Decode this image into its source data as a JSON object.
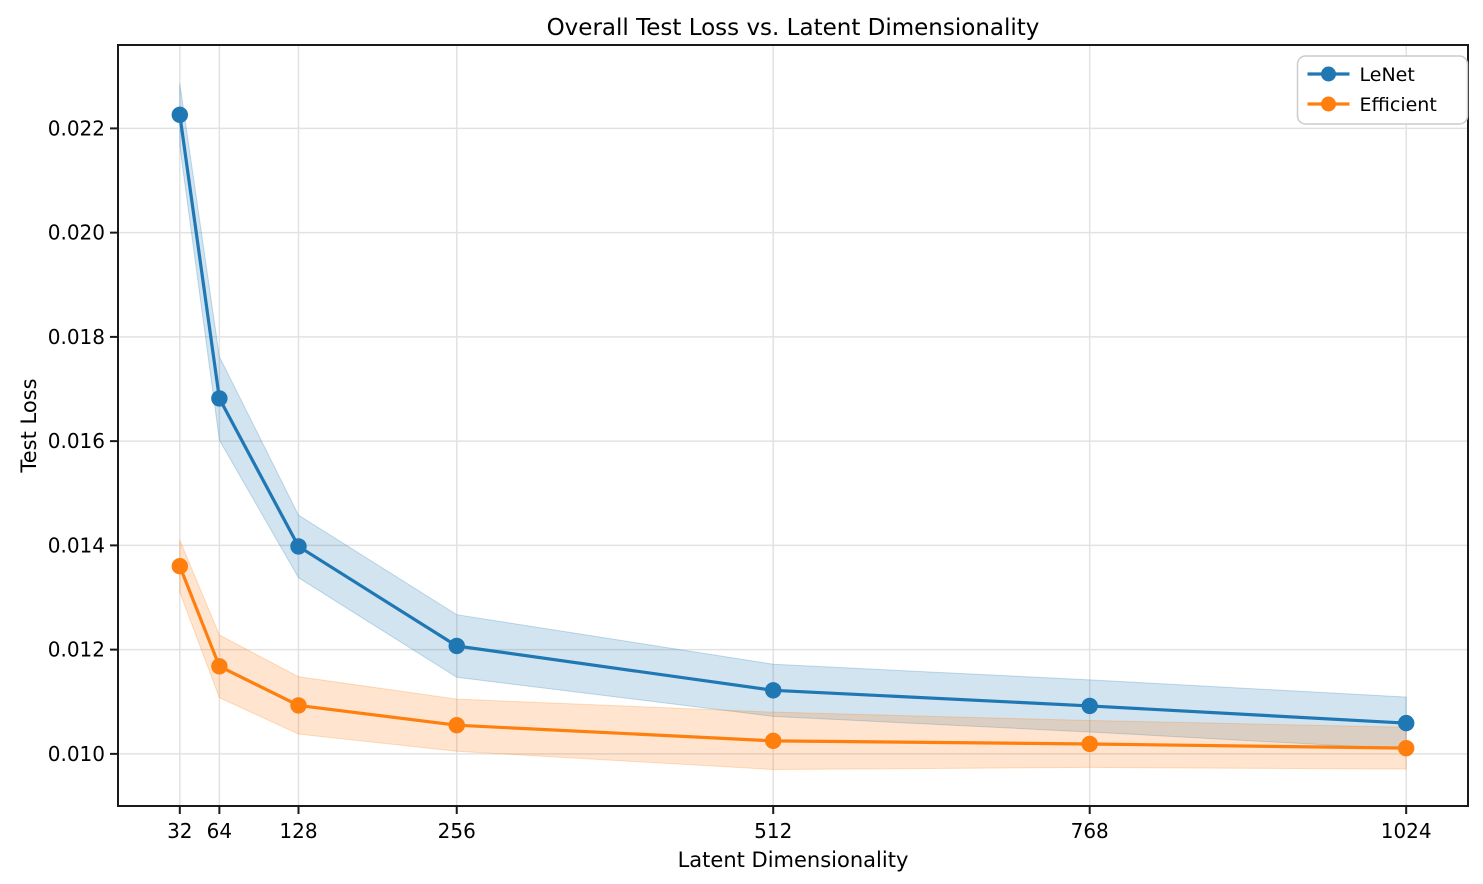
{
  "chart_data": {
    "type": "line",
    "title": "Overall Test Loss vs. Latent Dimensionality",
    "xlabel": "Latent Dimensionality",
    "ylabel": "Test Loss",
    "x": [
      32,
      64,
      128,
      256,
      512,
      768,
      1024
    ],
    "xtick_labels": [
      "32",
      "64",
      "128",
      "256",
      "512",
      "768",
      "1024"
    ],
    "yticks": [
      0.01,
      0.012,
      0.014,
      0.016,
      0.018,
      0.02,
      0.022
    ],
    "ytick_labels": [
      "0.010",
      "0.012",
      "0.014",
      "0.016",
      "0.018",
      "0.020",
      "0.022"
    ],
    "xlim": [
      -18,
      1074
    ],
    "ylim": [
      0.009,
      0.0236
    ],
    "grid": true,
    "legend_position": "upper right",
    "band_opacity": 0.2,
    "series": [
      {
        "name": "LeNet",
        "color": "#1f77b4",
        "values": [
          0.02226,
          0.01682,
          0.01398,
          0.01207,
          0.01122,
          0.01092,
          0.01059
        ],
        "std": [
          0.0006,
          0.0008,
          0.0006,
          0.0006,
          0.0005,
          0.0005,
          0.0005
        ]
      },
      {
        "name": "Efficient",
        "color": "#ff7f0e",
        "values": [
          0.0136,
          0.01168,
          0.01093,
          0.01055,
          0.01025,
          0.01019,
          0.01011
        ],
        "std": [
          0.0005,
          0.0006,
          0.00055,
          0.0005,
          0.00055,
          0.00045,
          0.0004
        ]
      }
    ]
  }
}
